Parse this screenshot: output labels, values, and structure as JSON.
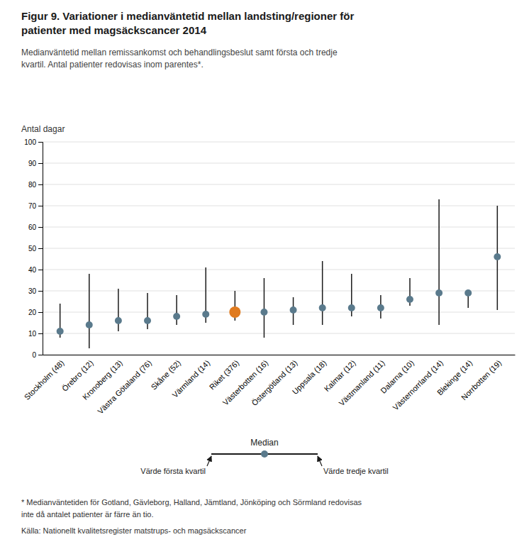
{
  "chart_data": {
    "type": "range",
    "title": [
      "Figur 9. Variationer i medianväntetid mellan landsting/regioner för",
      "patienter med magsäckscancer 2014"
    ],
    "subtitle": [
      "Medianväntetid mellan remissankomst och behandlingsbeslut  samt första och tredje",
      "kvartil. Antal patienter redovisas inom parentes*."
    ],
    "ylabel": "Antal dagar",
    "categories": [
      "Stockholm (48)",
      "Örebro (12)",
      "Kronoberg (13)",
      "Västra Götaland (76)",
      "Skåne (52)",
      "Värmland (14)",
      "Riket (376)",
      "Västerbotten (16)",
      "Östergötland (13)",
      "Uppsala (18)",
      "Kalmar (12)",
      "Västmanland (11)",
      "Dalarna (10)",
      "Västernorrland (14)",
      "Blekinge (14)",
      "Norrbotten (19)"
    ],
    "series": [
      {
        "name": "Median",
        "color": "#5a7a8c",
        "colors": [
          "#5a7a8c",
          "#5a7a8c",
          "#5a7a8c",
          "#5a7a8c",
          "#5a7a8c",
          "#5a7a8c",
          "#e07b20",
          "#5a7a8c",
          "#5a7a8c",
          "#5a7a8c",
          "#5a7a8c",
          "#5a7a8c",
          "#5a7a8c",
          "#5a7a8c",
          "#5a7a8c",
          "#5a7a8c"
        ],
        "values": [
          11,
          14,
          16,
          16,
          18,
          19,
          20,
          20,
          21,
          22,
          22,
          22,
          26,
          29,
          29,
          46
        ]
      },
      {
        "name": "Värde första kvartil",
        "color": "#1a1a1a",
        "values": [
          8,
          3,
          11,
          12,
          14,
          15,
          16,
          8,
          14,
          14,
          18,
          17,
          23,
          14,
          22,
          21
        ]
      },
      {
        "name": "Värde tredje kvartil",
        "color": "#1a1a1a",
        "values": [
          24,
          38,
          31,
          29,
          28,
          41,
          30,
          36,
          27,
          44,
          38,
          28,
          36,
          73,
          29,
          70
        ]
      }
    ],
    "ylim": [
      0,
      100
    ],
    "yticks": [
      0,
      10,
      20,
      30,
      40,
      50,
      60,
      70,
      80,
      90,
      100
    ],
    "grid": true,
    "footnotes": [
      "* Medianväntetiden för  Gotland, Gävleborg, Halland, Jämtland, Jönköping och Sörmland redovisas",
      "inte då antalet patienter är färre än tio.",
      "Källa: Nationellt kvalitetsregister matstrups- och magsäckscancer"
    ]
  }
}
